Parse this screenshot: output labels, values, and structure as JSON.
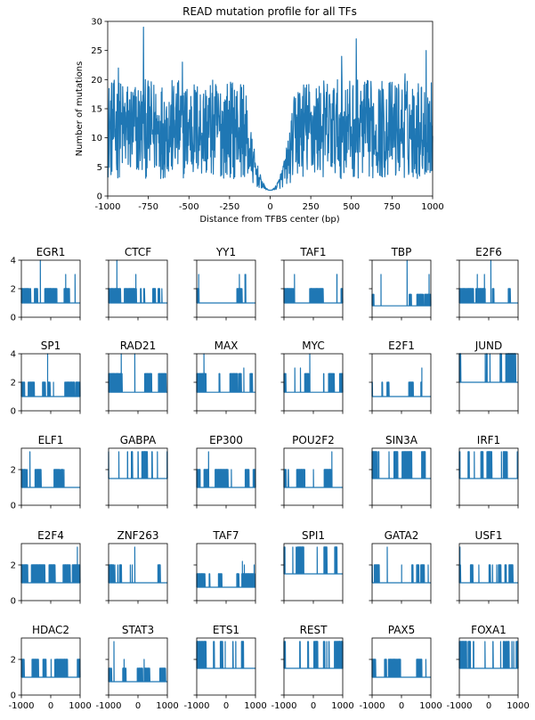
{
  "colors": {
    "series": "#1f77b4"
  },
  "chart_data": [
    {
      "type": "line",
      "title": "READ mutation profile for all TFs",
      "xlabel": "Distance from TFBS center (bp)",
      "ylabel": "Number of mutations",
      "xlim": [
        -1000,
        1000
      ],
      "ylim": [
        0,
        30
      ],
      "xticks": [
        "-1000",
        "-750",
        "-500",
        "-250",
        "0",
        "250",
        "500",
        "750",
        "1000"
      ],
      "yticks": [
        "0",
        "5",
        "10",
        "15",
        "20",
        "25",
        "30"
      ],
      "grid": false,
      "series": [
        {
          "x": [
            -1000,
            -750,
            -500,
            -250,
            0,
            250,
            500,
            750,
            1000
          ],
          "values": [
            9,
            10,
            9,
            8,
            1.5,
            8,
            9,
            9,
            9
          ],
          "baseline": 3,
          "upper": 20,
          "notch_center": 0,
          "notch_halfwidth": 160
        }
      ]
    },
    {
      "type": "line",
      "xlim": [
        -1000,
        1000
      ],
      "xticks": [
        "-1000",
        "0",
        "1000"
      ],
      "grid": false,
      "panels": [
        {
          "title": "EGR1",
          "ylim": [
            0,
            4
          ],
          "yticks": [
            "0",
            "2",
            "4"
          ],
          "baseline": 1,
          "level": 2,
          "max": 3,
          "peak": 4
        },
        {
          "title": "CTCF",
          "ylim": [
            0,
            4
          ],
          "yticks": [
            "0",
            "2",
            "4"
          ],
          "baseline": 1,
          "level": 2,
          "max": 3,
          "peak": 4
        },
        {
          "title": "YY1",
          "ylim": [
            0,
            4
          ],
          "yticks": [
            "0",
            "2",
            "4"
          ],
          "baseline": 1,
          "level": 2,
          "max": 3,
          "peak": 3
        },
        {
          "title": "TAF1",
          "ylim": [
            0,
            4
          ],
          "yticks": [
            "0",
            "2",
            "4"
          ],
          "baseline": 1,
          "level": 2,
          "max": 3,
          "peak": 3
        },
        {
          "title": "TBP",
          "ylim": [
            0,
            4
          ],
          "yticks": [
            "0",
            "2",
            "4"
          ],
          "baseline": 0.8,
          "level": 1.6,
          "max": 3,
          "peak": 4
        },
        {
          "title": "E2F6",
          "ylim": [
            0,
            4
          ],
          "yticks": [
            "0",
            "2",
            "4"
          ],
          "baseline": 1,
          "level": 2,
          "max": 3,
          "peak": 4
        },
        {
          "title": "SP1",
          "ylim": [
            0,
            4
          ],
          "yticks": [
            "0",
            "2",
            "4"
          ],
          "baseline": 1,
          "level": 2,
          "max": 2,
          "peak": 4
        },
        {
          "title": "RAD21",
          "ylim": [
            0,
            4
          ],
          "yticks": [
            "0",
            "2",
            "4"
          ],
          "baseline": 1.3,
          "level": 2.6,
          "max": 4,
          "peak": 4
        },
        {
          "title": "MAX",
          "ylim": [
            0,
            4
          ],
          "yticks": [
            "0",
            "2",
            "4"
          ],
          "baseline": 1.3,
          "level": 2.6,
          "max": 3,
          "peak": 4
        },
        {
          "title": "MYC",
          "ylim": [
            0,
            4
          ],
          "yticks": [
            "0",
            "2",
            "4"
          ],
          "baseline": 1.3,
          "level": 2.6,
          "max": 3,
          "peak": 4
        },
        {
          "title": "E2F1",
          "ylim": [
            0,
            4
          ],
          "yticks": [
            "0",
            "2",
            "4"
          ],
          "baseline": 1,
          "level": 2,
          "max": 2,
          "peak": 3
        },
        {
          "title": "JUND",
          "ylim": [
            0,
            4
          ],
          "yticks": [
            "0",
            "2",
            "4"
          ],
          "baseline": 2,
          "level": 4,
          "max": 4,
          "peak": 4
        },
        {
          "title": "ELF1",
          "ylim": [
            0,
            3.2
          ],
          "yticks": [
            "0",
            "2"
          ],
          "baseline": 1,
          "level": 2,
          "max": 2,
          "peak": 3
        },
        {
          "title": "GABPA",
          "ylim": [
            0,
            3.2
          ],
          "yticks": [
            "0",
            "2"
          ],
          "baseline": 1.5,
          "level": 3,
          "max": 3,
          "peak": 3
        },
        {
          "title": "EP300",
          "ylim": [
            0,
            3.2
          ],
          "yticks": [
            "0",
            "2"
          ],
          "baseline": 1,
          "level": 2,
          "max": 2,
          "peak": 3
        },
        {
          "title": "POU2F2",
          "ylim": [
            0,
            3.2
          ],
          "yticks": [
            "0",
            "2"
          ],
          "baseline": 1,
          "level": 2,
          "max": 2,
          "peak": 3
        },
        {
          "title": "SIN3A",
          "ylim": [
            0,
            3.2
          ],
          "yticks": [
            "0",
            "2"
          ],
          "baseline": 1.5,
          "level": 3,
          "max": 3,
          "peak": 3
        },
        {
          "title": "IRF1",
          "ylim": [
            0,
            3.2
          ],
          "yticks": [
            "0",
            "2"
          ],
          "baseline": 1.5,
          "level": 3,
          "max": 3,
          "peak": 3
        },
        {
          "title": "E2F4",
          "ylim": [
            0,
            3.2
          ],
          "yticks": [
            "0",
            "2"
          ],
          "baseline": 1,
          "level": 2,
          "max": 2,
          "peak": 3
        },
        {
          "title": "ZNF263",
          "ylim": [
            0,
            3.2
          ],
          "yticks": [
            "0",
            "2"
          ],
          "baseline": 1,
          "level": 2,
          "max": 2,
          "peak": 3
        },
        {
          "title": "TAF7",
          "ylim": [
            0,
            3.2
          ],
          "yticks": [
            "0",
            "2"
          ],
          "baseline": 0.75,
          "level": 1.5,
          "max": 2,
          "peak": 2.2
        },
        {
          "title": "SPI1",
          "ylim": [
            0,
            3.2
          ],
          "yticks": [
            "0",
            "2"
          ],
          "baseline": 1.5,
          "level": 3,
          "max": 3,
          "peak": 3
        },
        {
          "title": "GATA2",
          "ylim": [
            0,
            3.2
          ],
          "yticks": [
            "0",
            "2"
          ],
          "baseline": 1,
          "level": 2,
          "max": 2,
          "peak": 3
        },
        {
          "title": "USF1",
          "ylim": [
            0,
            3.2
          ],
          "yticks": [
            "0",
            "2"
          ],
          "baseline": 1,
          "level": 2,
          "max": 2,
          "peak": 3
        },
        {
          "title": "HDAC2",
          "ylim": [
            0,
            3.2
          ],
          "yticks": [
            "0",
            "2"
          ],
          "baseline": 1,
          "level": 2,
          "max": 2,
          "peak": 2
        },
        {
          "title": "STAT3",
          "ylim": [
            0,
            3.2
          ],
          "yticks": [
            "0",
            "2"
          ],
          "baseline": 0.75,
          "level": 1.5,
          "max": 2,
          "peak": 3
        },
        {
          "title": "ETS1",
          "ylim": [
            0,
            3.2
          ],
          "yticks": [
            "0",
            "2"
          ],
          "baseline": 1.5,
          "level": 3,
          "max": 3,
          "peak": 3
        },
        {
          "title": "REST",
          "ylim": [
            0,
            3.2
          ],
          "yticks": [
            "0",
            "2"
          ],
          "baseline": 1.5,
          "level": 3,
          "max": 3,
          "peak": 3
        },
        {
          "title": "PAX5",
          "ylim": [
            0,
            3.2
          ],
          "yticks": [
            "0",
            "2"
          ],
          "baseline": 1,
          "level": 2,
          "max": 2,
          "peak": 2
        },
        {
          "title": "FOXA1",
          "ylim": [
            0,
            3.2
          ],
          "yticks": [
            "0",
            "2"
          ],
          "baseline": 1.5,
          "level": 3,
          "max": 3,
          "peak": 3
        }
      ]
    }
  ]
}
